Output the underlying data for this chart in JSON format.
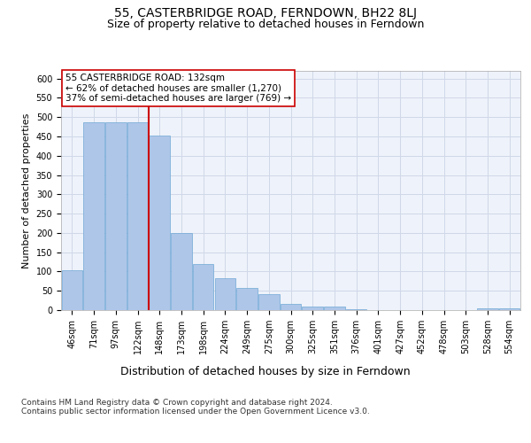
{
  "title": "55, CASTERBRIDGE ROAD, FERNDOWN, BH22 8LJ",
  "subtitle": "Size of property relative to detached houses in Ferndown",
  "xlabel": "Distribution of detached houses by size in Ferndown",
  "ylabel": "Number of detached properties",
  "categories": [
    "46sqm",
    "71sqm",
    "97sqm",
    "122sqm",
    "148sqm",
    "173sqm",
    "198sqm",
    "224sqm",
    "249sqm",
    "275sqm",
    "300sqm",
    "325sqm",
    "351sqm",
    "376sqm",
    "401sqm",
    "427sqm",
    "452sqm",
    "478sqm",
    "503sqm",
    "528sqm",
    "554sqm"
  ],
  "values": [
    103,
    487,
    487,
    487,
    452,
    200,
    120,
    82,
    57,
    42,
    15,
    10,
    10,
    3,
    1,
    1,
    1,
    0,
    0,
    5,
    5
  ],
  "bar_color": "#aec6e8",
  "bar_edge_color": "#6fa8d5",
  "grid_color": "#d0d8e8",
  "background_color": "#eef2fa",
  "vline_x": 3.5,
  "vline_color": "#cc0000",
  "annotation_text": "55 CASTERBRIDGE ROAD: 132sqm\n← 62% of detached houses are smaller (1,270)\n37% of semi-detached houses are larger (769) →",
  "annotation_box_color": "#ffffff",
  "annotation_box_edge_color": "#cc0000",
  "ylim": [
    0,
    620
  ],
  "yticks": [
    0,
    50,
    100,
    150,
    200,
    250,
    300,
    350,
    400,
    450,
    500,
    550,
    600
  ],
  "footer": "Contains HM Land Registry data © Crown copyright and database right 2024.\nContains public sector information licensed under the Open Government Licence v3.0.",
  "title_fontsize": 10,
  "subtitle_fontsize": 9,
  "xlabel_fontsize": 9,
  "ylabel_fontsize": 8,
  "tick_fontsize": 7,
  "annotation_fontsize": 7.5,
  "footer_fontsize": 6.5
}
